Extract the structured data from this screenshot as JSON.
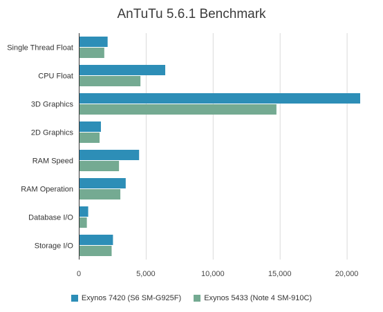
{
  "chart_data": {
    "type": "bar",
    "orientation": "horizontal",
    "title": "AnTuTu 5.6.1 Benchmark",
    "categories": [
      "Single Thread Float",
      "CPU Float",
      "3D Graphics",
      "2D Graphics",
      "RAM Speed",
      "RAM Operation",
      "Database I/O",
      "Storage I/O"
    ],
    "series": [
      {
        "name": "Exynos 7420 (S6 SM-G925F)",
        "color": "#2d8eb7",
        "values": [
          2150,
          6450,
          21000,
          1650,
          4500,
          3500,
          700,
          2550
        ]
      },
      {
        "name": "Exynos 5433 (Note 4 SM-910C)",
        "color": "#74aa92",
        "values": [
          1900,
          4600,
          14750,
          1550,
          3000,
          3100,
          600,
          2450
        ]
      }
    ],
    "xlim": [
      0,
      21000
    ],
    "xticks": [
      0,
      5000,
      10000,
      15000,
      20000
    ],
    "xtick_labels": [
      "0",
      "5,000",
      "10,000",
      "15,000",
      "20,000"
    ],
    "grid": true,
    "legend_position": "bottom"
  }
}
